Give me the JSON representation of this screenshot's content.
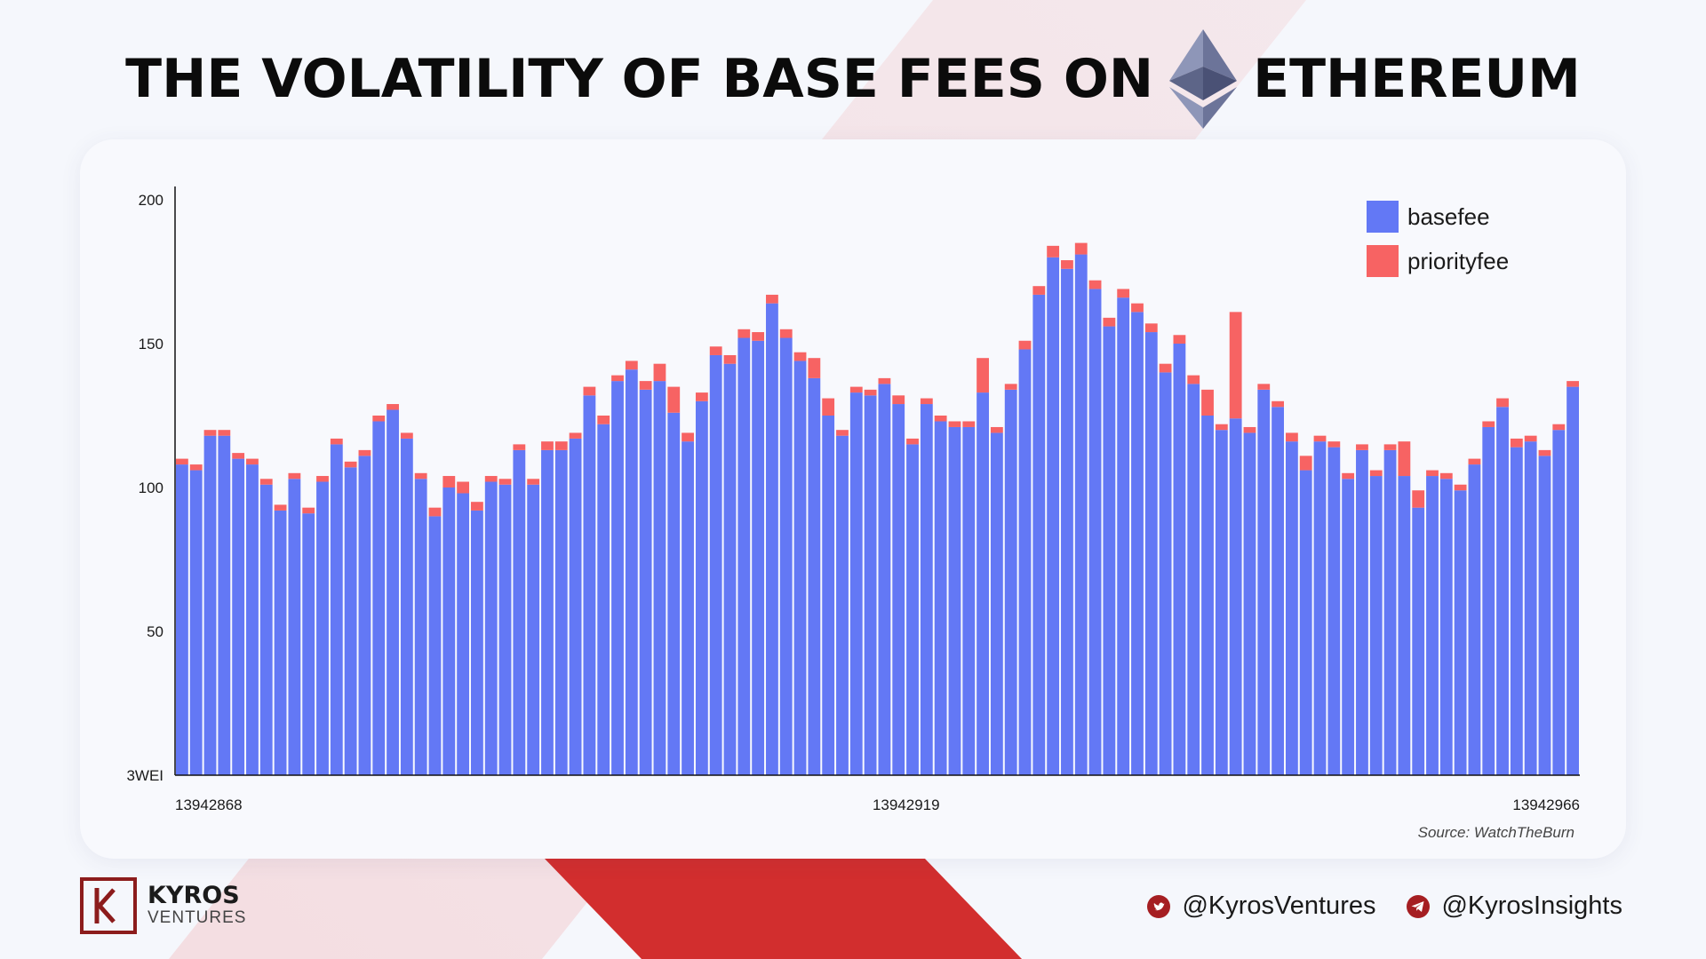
{
  "header": {
    "title_left": "THE VOLATILITY OF BASE FEES ON",
    "title_right": "ETHEREUM",
    "logo_icon": "ethereum-logo-icon"
  },
  "colors": {
    "basefee": "#6378f5",
    "priorityfee": "#f76363",
    "accent_red": "#d22e2e",
    "brand_dark_red": "#8c1c1c"
  },
  "chart_data": {
    "type": "bar",
    "stacked": true,
    "title": "",
    "xlabel": "",
    "ylabel": "",
    "ylim": [
      0,
      200
    ],
    "y_ticks": [
      {
        "value": 0,
        "label": "3WEI"
      },
      {
        "value": 50,
        "label": "50"
      },
      {
        "value": 100,
        "label": "100"
      },
      {
        "value": 150,
        "label": "150"
      },
      {
        "value": 200,
        "label": "200"
      }
    ],
    "x_range": [
      13942868,
      13942966
    ],
    "x_tick_labels": [
      "13942868",
      "13942919",
      "13942966"
    ],
    "grid": false,
    "legend_position": "top-right",
    "series": [
      {
        "name": "basefee",
        "values": [
          108,
          106,
          118,
          118,
          110,
          108,
          101,
          92,
          103,
          91,
          102,
          115,
          107,
          111,
          123,
          127,
          117,
          103,
          90,
          100,
          98,
          92,
          102,
          101,
          113,
          101,
          113,
          113,
          117,
          132,
          122,
          137,
          141,
          134,
          137,
          126,
          116,
          130,
          146,
          143,
          152,
          151,
          164,
          152,
          144,
          138,
          125,
          118,
          133,
          132,
          136,
          129,
          115,
          129,
          123,
          121,
          121,
          133,
          119,
          134,
          148,
          167,
          180,
          176,
          181,
          169,
          156,
          166,
          161,
          154,
          140,
          150,
          136,
          125,
          120,
          124,
          119,
          134,
          128,
          116,
          106,
          116,
          114,
          103,
          113,
          104,
          113,
          104,
          93,
          104,
          103,
          99,
          108,
          121,
          128,
          114,
          116,
          111,
          120,
          135
        ]
      },
      {
        "name": "priorityfee",
        "values": [
          2,
          2,
          2,
          2,
          2,
          2,
          2,
          2,
          2,
          2,
          2,
          2,
          2,
          2,
          2,
          2,
          2,
          2,
          3,
          4,
          4,
          3,
          2,
          2,
          2,
          2,
          3,
          3,
          2,
          3,
          3,
          2,
          3,
          3,
          6,
          9,
          3,
          3,
          3,
          3,
          3,
          3,
          3,
          3,
          3,
          7,
          6,
          2,
          2,
          2,
          2,
          3,
          2,
          2,
          2,
          2,
          2,
          12,
          2,
          2,
          3,
          3,
          4,
          3,
          4,
          3,
          3,
          3,
          3,
          3,
          3,
          3,
          3,
          9,
          2,
          37,
          2,
          2,
          2,
          3,
          5,
          2,
          2,
          2,
          2,
          2,
          2,
          12,
          6,
          2,
          2,
          2,
          2,
          2,
          3,
          3,
          2,
          2,
          2,
          2
        ]
      }
    ]
  },
  "source": "Source: WatchTheBurn",
  "footer": {
    "brand_name": "KYROS",
    "brand_sub": "VENTURES",
    "social_1": {
      "icon": "twitter-icon",
      "handle": "@KyrosVentures"
    },
    "social_2": {
      "icon": "telegram-icon",
      "handle": "@KyrosInsights"
    }
  }
}
